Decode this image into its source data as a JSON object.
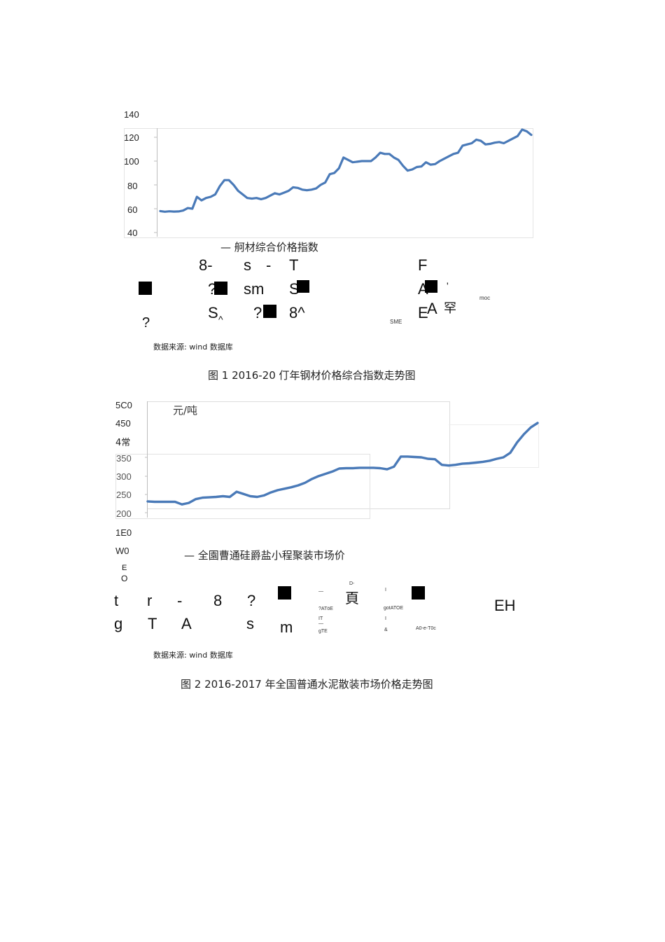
{
  "chart_data": [
    {
      "type": "line",
      "title": "",
      "xlabel": "",
      "ylabel": "",
      "y_ticks": [
        "140",
        "120",
        "100",
        "80",
        "60",
        "40"
      ],
      "ylim": [
        40,
        140
      ],
      "grid": false,
      "legend_position": "bottom",
      "series": [
        {
          "name": "— 舸材综合价格指数",
          "color": "#4a7ab8",
          "values": [
            58,
            57.5,
            57.8,
            57.6,
            57.7,
            58.5,
            60.5,
            60,
            70,
            67,
            69,
            70,
            72,
            79,
            84,
            84,
            80,
            75,
            72,
            69,
            68.5,
            69,
            68,
            69,
            71,
            73,
            72,
            73.5,
            75,
            78,
            77.5,
            76,
            75.5,
            76,
            77,
            80,
            82,
            89,
            90,
            94,
            103,
            101,
            99,
            99.5,
            100,
            100,
            100,
            103,
            107,
            106,
            106,
            103,
            101,
            96,
            92,
            93,
            95,
            95.5,
            99,
            97,
            97.5,
            100,
            102,
            104,
            106,
            107,
            113,
            114,
            115,
            118,
            117,
            114,
            114.5,
            115.5,
            116,
            115,
            117,
            119,
            121,
            126.5,
            125,
            122
          ]
        }
      ]
    },
    {
      "type": "line",
      "title": "",
      "xlabel": "",
      "ylabel": "元/吨",
      "y_ticks": [
        "5C0",
        "450",
        "4常",
        "350",
        "300",
        "250",
        "200",
        "1E0",
        "W0",
        "E O"
      ],
      "ylim": [
        50,
        500
      ],
      "grid": false,
      "legend_position": "bottom",
      "series": [
        {
          "name": "— 全園曹通硅爵盐小程聚装市场价",
          "color": "#4a7ab8",
          "values": [
            232,
            231,
            231,
            231,
            231,
            224,
            228,
            238,
            242,
            243,
            244,
            246,
            244,
            258,
            252,
            246,
            244,
            248,
            256,
            262,
            266,
            270,
            275,
            282,
            292,
            300,
            306,
            312,
            320,
            321,
            321,
            322,
            322,
            322,
            321,
            318,
            325,
            352,
            352,
            351,
            350,
            346,
            345,
            330,
            328,
            330,
            333,
            334,
            336,
            338,
            341,
            346,
            350,
            362,
            390,
            412,
            430,
            442
          ]
        }
      ]
    }
  ],
  "figure1": {
    "y_top_label": "140",
    "y_labels": [
      "120",
      "100",
      "80",
      "60",
      "40"
    ],
    "legend": "— 舸材综合价格指数",
    "garbled_text": {
      "row1": [
        "8-",
        "s",
        "-",
        "T",
        "F"
      ],
      "row2": [
        "?",
        "sm",
        "S",
        "A",
        "'"
      ],
      "row3": [
        "S",
        "^",
        "?",
        "8^",
        "E",
        "A",
        "罕"
      ],
      "row4": [
        "?"
      ],
      "small": [
        "moc",
        "SME"
      ]
    },
    "source": "数据来源:   wind  数据库",
    "caption": "图 1 2016-20  仃年钢材价格综合指数走势图"
  },
  "figure2": {
    "unit_label": "元/吨",
    "y_labels": [
      "5C0",
      "450",
      "4常",
      "350",
      "300",
      "250",
      "200",
      "1E0",
      "W0",
      "E",
      "O"
    ],
    "legend": "— 全園曹通硅爵盐小程聚装市场价",
    "garbled_text": {
      "row1": [
        "t",
        "r",
        "-",
        "8",
        "?",
        "頁",
        "EH"
      ],
      "row2": [
        "g",
        "T",
        "A",
        "s",
        "m"
      ],
      "small": [
        "D-",
        "—",
        "?ATöE",
        "IT",
        "—",
        "gTE",
        "I",
        "gotATOE",
        "I",
        "&",
        "A0-e-T0c"
      ]
    },
    "source": "数据来源:   wind  数据库",
    "caption": "图 2 2016-2017   年全国普通水泥散装市场价格走势图"
  }
}
